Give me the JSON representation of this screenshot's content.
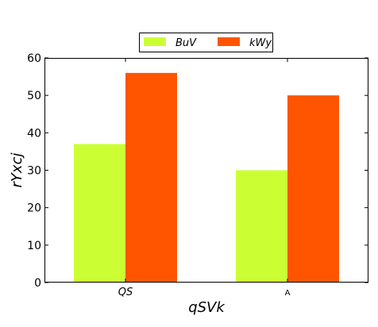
{
  "chart_data": {
    "type": "bar",
    "title": "",
    "xlabel": "qSVk",
    "ylabel": "rYxcj",
    "categories": [
      "QS",
      "A"
    ],
    "series": [
      {
        "name": "BuV",
        "values": [
          37,
          30
        ],
        "color": "#ccff33"
      },
      {
        "name": "kWy",
        "values": [
          56,
          50
        ],
        "color": "#ff5500"
      }
    ],
    "ylim": [
      0,
      60
    ],
    "yticks": [
      0,
      10,
      20,
      30,
      40,
      50,
      60
    ],
    "grid": false,
    "legend_position": "top-center"
  }
}
